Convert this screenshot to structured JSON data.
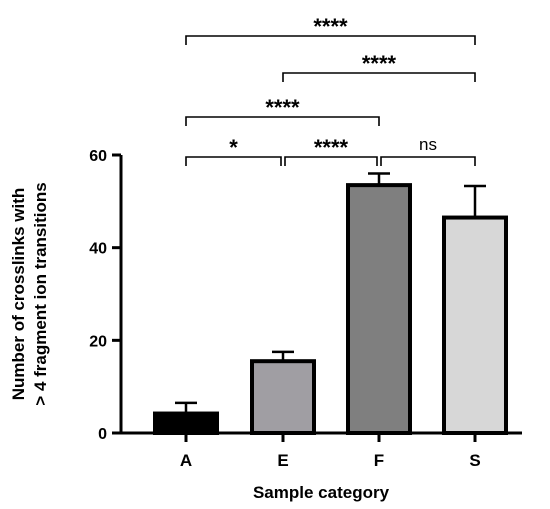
{
  "chart_data": {
    "type": "bar",
    "title": "",
    "xlabel": "Sample category",
    "ylabel_lines": [
      "Number of crosslinks with",
      "> 4 fragment ion transitions"
    ],
    "categories": [
      "A",
      "E",
      "F",
      "S"
    ],
    "values": [
      4.2,
      15.5,
      53.5,
      46.5
    ],
    "errors": [
      2.3,
      2.0,
      2.5,
      6.8
    ],
    "colors": [
      "#000000",
      "#a09ea3",
      "#7f7f7f",
      "#d7d7d7"
    ],
    "ylim": [
      0,
      60
    ],
    "yticks": [
      "0",
      "20",
      "40",
      "60"
    ],
    "grid": false,
    "significance": [
      {
        "from": 0,
        "to": 3,
        "label": "****"
      },
      {
        "from": 1,
        "to": 3,
        "label": "****"
      },
      {
        "from": 0,
        "to": 2,
        "label": "****"
      },
      {
        "from": 0,
        "to": 1,
        "label": "*"
      },
      {
        "from": 1,
        "to": 2,
        "label": "****"
      },
      {
        "from": 2,
        "to": 3,
        "label": "ns"
      }
    ]
  }
}
